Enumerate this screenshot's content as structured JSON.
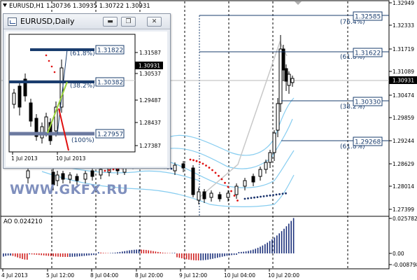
{
  "chart_header": {
    "symbol": "EURUSD,H1",
    "ohlc": "1.30736 1.30935 1.30722 1.30931"
  },
  "watermark": "WWW.GKFX.RU",
  "current_price_label": "1.30931",
  "price_axis": [
    "1.32949",
    "1.32333",
    "1.31719",
    "1.31089",
    "1.30474",
    "1.29859",
    "1.29244",
    "1.28629",
    "1.28014",
    "1.27399"
  ],
  "fib_levels": [
    {
      "pct": "(76.4%)",
      "price": "1.32585"
    },
    {
      "pct": "(61.8%)",
      "price": "1.31622"
    },
    {
      "pct": "(38.2%)",
      "price": "1.30330"
    },
    {
      "pct": "(61.8%)",
      "price": "1.29268"
    }
  ],
  "ao": {
    "label": "AO 0.024210",
    "axis": [
      "0.025782",
      "0.00",
      "-0.008798"
    ]
  },
  "time_axis": [
    "4 Jul 2013",
    "5 Jul 12:00",
    "8 Jul 04:00",
    "8 Jul 20:00",
    "9 Jul 12:00",
    "10 Jul 04:00",
    "10 Jul 20:00"
  ],
  "inset": {
    "title": "EURUSD,Daily",
    "buttons": {
      "minimize": "▬",
      "restore": "❐",
      "close": "✕"
    },
    "price_axis": [
      "1.31587",
      "1.30537",
      "1.29487",
      "1.28437",
      "1.27387"
    ],
    "current_price_label": "1.30931",
    "fib_levels": [
      {
        "pct": "(61.8%)",
        "price": "1.31822"
      },
      {
        "pct": "(38.2%)",
        "price": "1.30382"
      },
      {
        "pct": "(100%)",
        "price": "1.27957"
      }
    ],
    "time_axis": [
      "1 Jul 2013",
      "10 Jul 2013"
    ]
  },
  "colors": {
    "fib_line": "#1a3d6e",
    "band": "#87cdf0",
    "sar_red": "#e01010",
    "sar_blue": "#17306a",
    "ao_up": "#1a2f7a",
    "ao_down": "#d02020",
    "ma_gray": "#c8c8c8"
  }
}
